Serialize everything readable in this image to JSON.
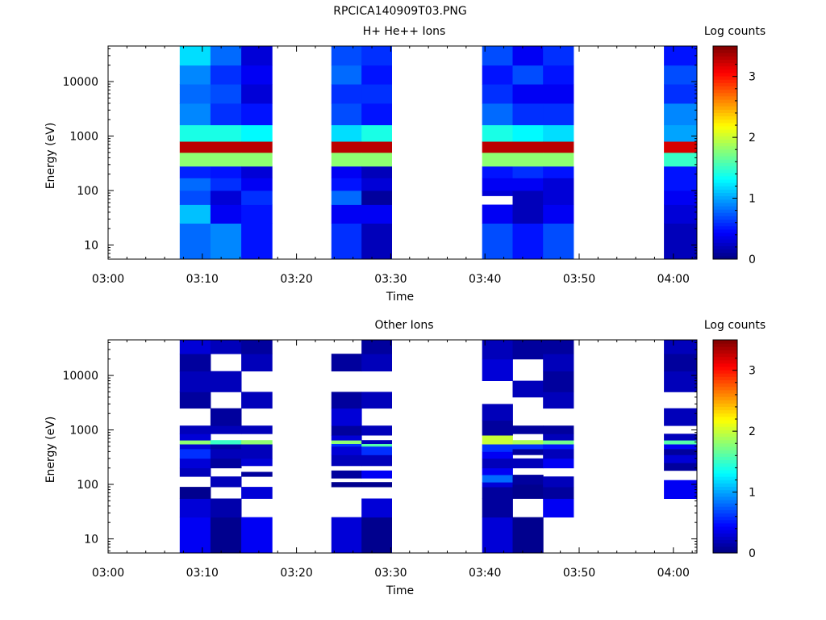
{
  "figure_title": "RPCICA140909T03.PNG",
  "chart_data": [
    {
      "type": "heatmap",
      "title": "H+ He++ Ions",
      "xlabel": "Time",
      "ylabel": "Energy (eV)",
      "x_ticks": [
        "03:00",
        "03:10",
        "03:20",
        "03:30",
        "03:40",
        "03:50",
        "04:00"
      ],
      "xlim_minutes": [
        180,
        242.5
      ],
      "y_scale": "log",
      "y_ticks": [
        "10",
        "100",
        "1000",
        "10000"
      ],
      "ylim": [
        5.5,
        45000
      ],
      "colorbar": {
        "label": "Log counts",
        "ticks": [
          "0",
          "1",
          "2",
          "3"
        ],
        "range": [
          0,
          3.5
        ],
        "colormap": "jet"
      },
      "groups": [
        {
          "t_start_min": 187.6,
          "t_end_min": 197.4,
          "columns": [
            {
              "edges": [
                5.5,
                25,
                55,
                100,
                170,
                280,
                500,
                800,
                1600,
                4000,
                9000,
                20000,
                45000
              ],
              "values": [
                0.8,
                1.1,
                0.7,
                0.8,
                0.55,
                1.8,
                3.3,
                1.4,
                0.9,
                0.8,
                0.9,
                1.2
              ]
            },
            {
              "edges": [
                5.5,
                25,
                55,
                100,
                170,
                280,
                500,
                800,
                1600,
                4000,
                9000,
                20000,
                45000
              ],
              "values": [
                0.9,
                0.4,
                0.3,
                0.6,
                0.5,
                1.8,
                3.3,
                1.4,
                0.6,
                0.7,
                0.6,
                0.8
              ]
            },
            {
              "edges": [
                5.5,
                25,
                55,
                100,
                170,
                280,
                500,
                800,
                1600,
                4000,
                9000,
                20000,
                45000
              ],
              "values": [
                0.5,
                0.5,
                0.6,
                0.4,
                0.3,
                1.8,
                3.3,
                1.3,
                0.5,
                0.3,
                0.4,
                0.3
              ]
            }
          ]
        },
        {
          "t_start_min": 203.7,
          "t_end_min": 210.1,
          "columns": [
            {
              "edges": [
                5.5,
                25,
                55,
                100,
                170,
                280,
                500,
                800,
                1600,
                4000,
                9000,
                20000,
                45000
              ],
              "values": [
                0.6,
                0.4,
                0.8,
                0.5,
                0.4,
                1.8,
                3.3,
                1.2,
                0.7,
                0.6,
                0.8,
                0.7
              ]
            },
            {
              "edges": [
                5.5,
                25,
                55,
                100,
                170,
                280,
                500,
                800,
                1600,
                4000,
                9000,
                20000,
                45000
              ],
              "values": [
                0.2,
                0.4,
                0.1,
                0.3,
                0.2,
                1.8,
                3.3,
                1.4,
                0.5,
                0.6,
                0.5,
                0.6
              ]
            }
          ]
        },
        {
          "t_start_min": 219.7,
          "t_end_min": 229.4,
          "columns": [
            {
              "edges": [
                5.5,
                25,
                55,
                80,
                100,
                170,
                280,
                500,
                800,
                1600,
                4000,
                9000,
                20000,
                45000
              ],
              "values": [
                0.7,
                0.4,
                null,
                0.3,
                0.4,
                0.5,
                1.8,
                3.3,
                1.4,
                0.8,
                0.6,
                0.5,
                0.7
              ]
            },
            {
              "edges": [
                5.5,
                25,
                55,
                100,
                170,
                280,
                500,
                800,
                1600,
                4000,
                9000,
                20000,
                45000
              ],
              "values": [
                0.5,
                0.2,
                0.2,
                0.4,
                0.6,
                1.8,
                3.3,
                1.3,
                0.6,
                0.4,
                0.7,
                0.4
              ]
            },
            {
              "edges": [
                5.5,
                25,
                55,
                100,
                170,
                280,
                500,
                800,
                1600,
                4000,
                9000,
                20000,
                45000
              ],
              "values": [
                0.7,
                0.4,
                0.3,
                0.3,
                0.5,
                1.8,
                3.3,
                1.2,
                0.6,
                0.4,
                0.5,
                0.6
              ]
            }
          ]
        },
        {
          "t_start_min": 239.0,
          "t_end_min": 242.5,
          "columns": [
            {
              "edges": [
                5.5,
                25,
                55,
                100,
                170,
                280,
                500,
                800,
                1600,
                4000,
                9000,
                20000,
                45000
              ],
              "values": [
                0.2,
                0.3,
                0.4,
                0.5,
                0.5,
                1.5,
                3.2,
                1.0,
                0.9,
                0.6,
                0.7,
                0.5
              ]
            }
          ]
        }
      ]
    },
    {
      "type": "heatmap",
      "title": "Other Ions",
      "xlabel": "Time",
      "ylabel": "Energy (eV)",
      "x_ticks": [
        "03:00",
        "03:10",
        "03:20",
        "03:30",
        "03:40",
        "03:50",
        "04:00"
      ],
      "xlim_minutes": [
        180,
        242.5
      ],
      "y_scale": "log",
      "y_ticks": [
        "10",
        "100",
        "1000",
        "10000"
      ],
      "ylim": [
        5.5,
        45000
      ],
      "colorbar": {
        "label": "Log counts",
        "ticks": [
          "0",
          "1",
          "2",
          "3"
        ],
        "range": [
          0,
          3.5
        ],
        "colormap": "jet"
      },
      "groups": [
        {
          "t_start_min": 187.6,
          "t_end_min": 197.4,
          "columns": [
            {
              "edges": [
                5.5,
                25,
                55,
                90,
                140,
                200,
                300,
                450,
                550,
                650,
                850,
                1200,
                2500,
                5000,
                12000,
                25000,
                45000
              ],
              "values": [
                0.4,
                0.3,
                0.05,
                null,
                0.2,
                0.3,
                0.6,
                0.3,
                1.8,
                0.3,
                0.2,
                null,
                0.1,
                0.2,
                0.1,
                0.3
              ]
            },
            {
              "edges": [
                5.5,
                25,
                55,
                90,
                140,
                200,
                300,
                450,
                550,
                650,
                850,
                1200,
                2500,
                5000,
                12000,
                25000,
                45000
              ],
              "values": [
                0.05,
                0.15,
                null,
                0.2,
                null,
                0.1,
                0.2,
                0.1,
                1.5,
                null,
                0.2,
                0.1,
                null,
                0.2,
                null,
                0.2
              ]
            },
            {
              "edges": [
                5.5,
                25,
                55,
                90,
                140,
                170,
                220,
                300,
                450,
                550,
                650,
                850,
                1200,
                2500,
                5000,
                12000,
                25000,
                45000
              ],
              "values": [
                0.4,
                null,
                0.3,
                null,
                0.1,
                null,
                0.3,
                0.2,
                0.2,
                1.8,
                null,
                0.2,
                null,
                0.2,
                null,
                0.2,
                0.1
              ]
            }
          ]
        },
        {
          "t_start_min": 203.7,
          "t_end_min": 210.1,
          "columns": [
            {
              "edges": [
                5.5,
                25,
                90,
                110,
                130,
                180,
                220,
                350,
                500,
                560,
                650,
                800,
                1200,
                2500,
                5000,
                12000,
                25000,
                45000
              ],
              "values": [
                0.3,
                null,
                0.05,
                null,
                0.1,
                null,
                0.2,
                0.3,
                0.6,
                1.8,
                0.3,
                0.1,
                0.3,
                0.1,
                null,
                0.1,
                null
              ]
            },
            {
              "edges": [
                5.5,
                25,
                55,
                90,
                110,
                130,
                180,
                220,
                350,
                500,
                560,
                650,
                800,
                1200,
                2500,
                5000,
                12000,
                25000,
                45000
              ],
              "values": [
                0.05,
                0.3,
                null,
                0.05,
                null,
                0.4,
                null,
                0.2,
                0.6,
                1.6,
                0.2,
                null,
                0.2,
                null,
                0.2,
                null,
                0.2,
                0.1
              ]
            }
          ]
        },
        {
          "t_start_min": 219.7,
          "t_end_min": 229.4,
          "columns": [
            {
              "edges": [
                5.5,
                25,
                55,
                90,
                110,
                150,
                200,
                300,
                400,
                550,
                800,
                1500,
                3000,
                8000,
                20000,
                45000
              ],
              "values": [
                0.3,
                0.1,
                0.1,
                0.3,
                0.8,
                0.4,
                0.2,
                0.4,
                0.6,
                2.0,
                0.1,
                0.2,
                null,
                0.3,
                0.2
              ]
            },
            {
              "edges": [
                5.5,
                25,
                55,
                100,
                150,
                200,
                300,
                350,
                450,
                550,
                650,
                850,
                1200,
                4000,
                8000,
                20000,
                45000
              ],
              "values": [
                0.05,
                null,
                0.05,
                0.1,
                null,
                0.2,
                null,
                0.1,
                0.6,
                1.9,
                null,
                0.1,
                null,
                0.2,
                null,
                0.1
              ]
            },
            {
              "edges": [
                5.5,
                25,
                55,
                90,
                140,
                200,
                300,
                450,
                550,
                650,
                850,
                1200,
                2500,
                5000,
                12000,
                25000,
                45000
              ],
              "values": [
                null,
                0.4,
                0.1,
                0.2,
                null,
                0.4,
                0.2,
                0.5,
                1.7,
                0.2,
                0.1,
                null,
                0.2,
                0.1,
                0.2,
                0.1
              ]
            }
          ]
        },
        {
          "t_start_min": 239.0,
          "t_end_min": 242.5,
          "columns": [
            {
              "edges": [
                5.5,
                25,
                55,
                120,
                180,
                250,
                350,
                450,
                550,
                650,
                850,
                1200,
                2500,
                5000,
                12000,
                25000,
                45000
              ],
              "values": [
                null,
                null,
                0.4,
                null,
                0.1,
                0.3,
                0.1,
                0.4,
                1.6,
                0.2,
                null,
                0.2,
                null,
                0.2,
                0.1,
                0.2
              ]
            }
          ]
        }
      ]
    }
  ]
}
